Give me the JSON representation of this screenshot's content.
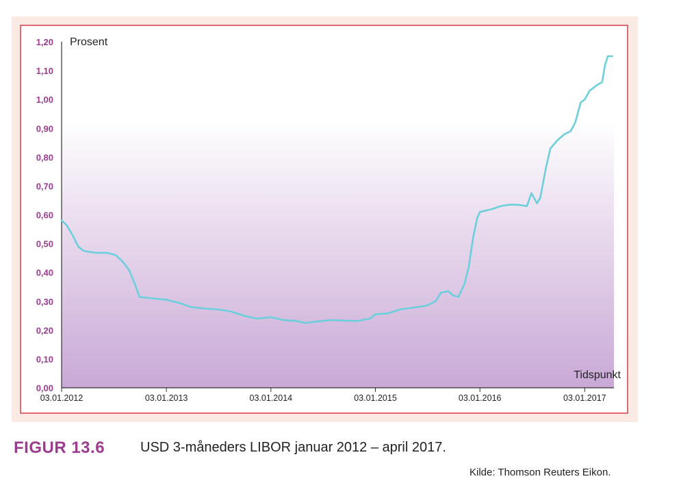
{
  "chart_data": {
    "type": "line",
    "ylabel": "Prosent",
    "xlabel": "Tidspunkt",
    "ylim": [
      0,
      1.2
    ],
    "yticks": [
      "0,00",
      "0,10",
      "0,20",
      "0,30",
      "0,40",
      "0,50",
      "0,60",
      "0,70",
      "0,80",
      "0,90",
      "1,00",
      "1,10",
      "1,20"
    ],
    "xticks": [
      "03.01.2012",
      "03.01.2013",
      "03.01.2014",
      "03.01.2015",
      "03.01.2016",
      "03.01.2017"
    ],
    "grid": false,
    "colors": {
      "line": "#6ccfdc",
      "tick_label": "#9b3c8e",
      "frame_border": "#e06a72",
      "frame_fill": "#fbe9e4",
      "area_fill": "#c9a8d6"
    },
    "series": [
      {
        "values": [
          [
            "2012-01-03",
            0.58
          ],
          [
            "2012-01-20",
            0.565
          ],
          [
            "2012-02-10",
            0.53
          ],
          [
            "2012-03-01",
            0.49
          ],
          [
            "2012-03-20",
            0.475
          ],
          [
            "2012-05-01",
            0.468
          ],
          [
            "2012-06-10",
            0.468
          ],
          [
            "2012-07-10",
            0.46
          ],
          [
            "2012-08-01",
            0.44
          ],
          [
            "2012-08-25",
            0.41
          ],
          [
            "2012-09-15",
            0.36
          ],
          [
            "2012-10-01",
            0.315
          ],
          [
            "2012-11-15",
            0.31
          ],
          [
            "2013-01-03",
            0.305
          ],
          [
            "2013-02-15",
            0.295
          ],
          [
            "2013-04-01",
            0.28
          ],
          [
            "2013-05-15",
            0.275
          ],
          [
            "2013-07-01",
            0.272
          ],
          [
            "2013-08-15",
            0.265
          ],
          [
            "2013-10-01",
            0.25
          ],
          [
            "2013-11-15",
            0.24
          ],
          [
            "2014-01-03",
            0.245
          ],
          [
            "2014-02-15",
            0.235
          ],
          [
            "2014-04-01",
            0.232
          ],
          [
            "2014-05-01",
            0.225
          ],
          [
            "2014-06-15",
            0.23
          ],
          [
            "2014-08-01",
            0.235
          ],
          [
            "2014-09-15",
            0.233
          ],
          [
            "2014-11-01",
            0.232
          ],
          [
            "2014-12-15",
            0.24
          ],
          [
            "2015-01-03",
            0.255
          ],
          [
            "2015-02-15",
            0.258
          ],
          [
            "2015-04-01",
            0.272
          ],
          [
            "2015-05-15",
            0.278
          ],
          [
            "2015-07-01",
            0.285
          ],
          [
            "2015-08-01",
            0.3
          ],
          [
            "2015-08-20",
            0.33
          ],
          [
            "2015-09-15",
            0.335
          ],
          [
            "2015-10-01",
            0.32
          ],
          [
            "2015-10-20",
            0.315
          ],
          [
            "2015-11-10",
            0.36
          ],
          [
            "2015-11-25",
            0.42
          ],
          [
            "2015-12-10",
            0.52
          ],
          [
            "2015-12-25",
            0.59
          ],
          [
            "2016-01-03",
            0.61
          ],
          [
            "2016-02-15",
            0.62
          ],
          [
            "2016-03-15",
            0.63
          ],
          [
            "2016-04-15",
            0.635
          ],
          [
            "2016-05-15",
            0.635
          ],
          [
            "2016-06-15",
            0.63
          ],
          [
            "2016-07-01",
            0.675
          ],
          [
            "2016-07-20",
            0.64
          ],
          [
            "2016-08-01",
            0.66
          ],
          [
            "2016-08-20",
            0.76
          ],
          [
            "2016-09-05",
            0.83
          ],
          [
            "2016-10-01",
            0.86
          ],
          [
            "2016-10-25",
            0.88
          ],
          [
            "2016-11-15",
            0.89
          ],
          [
            "2016-12-01",
            0.92
          ],
          [
            "2016-12-20",
            0.99
          ],
          [
            "2017-01-03",
            1.0
          ],
          [
            "2017-01-20",
            1.03
          ],
          [
            "2017-02-15",
            1.05
          ],
          [
            "2017-03-05",
            1.06
          ],
          [
            "2017-03-15",
            1.12
          ],
          [
            "2017-03-25",
            1.15
          ],
          [
            "2017-04-10",
            1.15
          ]
        ]
      }
    ]
  },
  "caption": {
    "figure_label": "FIGUR 13.6",
    "text": "USD 3-måneders LIBOR januar 2012 – april 2017.",
    "source": "Kilde: Thomson Reuters Eikon."
  }
}
